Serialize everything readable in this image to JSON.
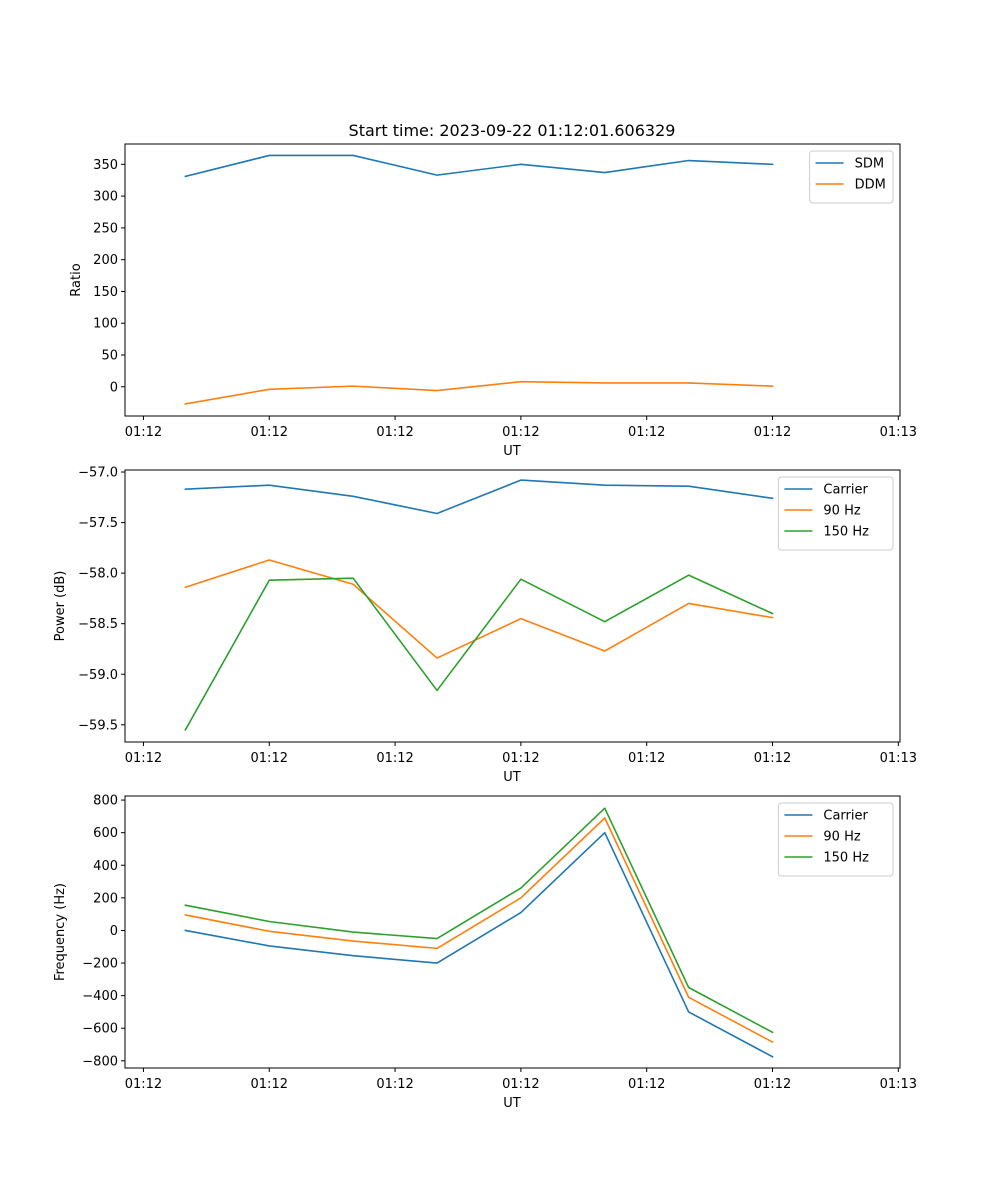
{
  "title": "Start time: 2023-09-22 01:12:01.606329",
  "colors": {
    "blue": "#1f77b4",
    "orange": "#ff7f0e",
    "green": "#2ca02c"
  },
  "chart_data": [
    {
      "type": "line",
      "title": "Start time: 2023-09-22 01:12:01.606329",
      "xlabel": "UT",
      "ylabel": "Ratio",
      "x": [
        1,
        2,
        3,
        4,
        5,
        6,
        7,
        8
      ],
      "xlim": [
        0.28,
        9.52
      ],
      "xticks": [
        {
          "v": 0.5,
          "label": "01:12"
        },
        {
          "v": 2,
          "label": "01:12"
        },
        {
          "v": 3.5,
          "label": "01:12"
        },
        {
          "v": 5,
          "label": "01:12"
        },
        {
          "v": 6.5,
          "label": "01:12"
        },
        {
          "v": 8,
          "label": "01:12"
        },
        {
          "v": 9.5,
          "label": "01:13"
        }
      ],
      "ylim": [
        -46,
        382
      ],
      "yticks": [
        {
          "v": 0,
          "label": "0"
        },
        {
          "v": 50,
          "label": "50"
        },
        {
          "v": 100,
          "label": "100"
        },
        {
          "v": 150,
          "label": "150"
        },
        {
          "v": 200,
          "label": "200"
        },
        {
          "v": 250,
          "label": "250"
        },
        {
          "v": 300,
          "label": "300"
        },
        {
          "v": 350,
          "label": "350"
        }
      ],
      "legend_position": "top-right",
      "series": [
        {
          "name": "SDM",
          "color": "#1f77b4",
          "values": [
            331,
            364,
            364,
            333,
            350,
            337,
            356,
            350
          ]
        },
        {
          "name": "DDM",
          "color": "#ff7f0e",
          "values": [
            -27,
            -4,
            1,
            -6,
            8,
            6,
            6,
            1
          ]
        }
      ]
    },
    {
      "type": "line",
      "title": "",
      "xlabel": "UT",
      "ylabel": "Power (dB)",
      "x": [
        1,
        2,
        3,
        4,
        5,
        6,
        7,
        8
      ],
      "xlim": [
        0.28,
        9.52
      ],
      "xticks": [
        {
          "v": 0.5,
          "label": "01:12"
        },
        {
          "v": 2,
          "label": "01:12"
        },
        {
          "v": 3.5,
          "label": "01:12"
        },
        {
          "v": 5,
          "label": "01:12"
        },
        {
          "v": 6.5,
          "label": "01:12"
        },
        {
          "v": 8,
          "label": "01:12"
        },
        {
          "v": 9.5,
          "label": "01:13"
        }
      ],
      "ylim": [
        -59.67,
        -56.98
      ],
      "yticks": [
        {
          "v": -59.5,
          "label": "−59.5"
        },
        {
          "v": -59.0,
          "label": "−59.0"
        },
        {
          "v": -58.5,
          "label": "−58.5"
        },
        {
          "v": -58.0,
          "label": "−58.0"
        },
        {
          "v": -57.5,
          "label": "−57.5"
        },
        {
          "v": -57.0,
          "label": "−57.0"
        }
      ],
      "legend_position": "top-right",
      "series": [
        {
          "name": "Carrier",
          "color": "#1f77b4",
          "values": [
            -57.17,
            -57.13,
            -57.24,
            -57.41,
            -57.08,
            -57.13,
            -57.14,
            -57.26
          ]
        },
        {
          "name": "90 Hz",
          "color": "#ff7f0e",
          "values": [
            -58.14,
            -57.87,
            -58.11,
            -58.84,
            -58.45,
            -58.77,
            -58.3,
            -58.44
          ]
        },
        {
          "name": "150 Hz",
          "color": "#2ca02c",
          "values": [
            -59.55,
            -58.07,
            -58.05,
            -59.16,
            -58.06,
            -58.48,
            -58.02,
            -58.4
          ]
        }
      ]
    },
    {
      "type": "line",
      "title": "",
      "xlabel": "UT",
      "ylabel": "Frequency (Hz)",
      "x": [
        1,
        2,
        3,
        4,
        5,
        6,
        7,
        8
      ],
      "xlim": [
        0.28,
        9.52
      ],
      "xticks": [
        {
          "v": 0.5,
          "label": "01:12"
        },
        {
          "v": 2,
          "label": "01:12"
        },
        {
          "v": 3.5,
          "label": "01:12"
        },
        {
          "v": 5,
          "label": "01:12"
        },
        {
          "v": 6.5,
          "label": "01:12"
        },
        {
          "v": 8,
          "label": "01:12"
        },
        {
          "v": 9.5,
          "label": "01:13"
        }
      ],
      "ylim": [
        -844,
        825
      ],
      "yticks": [
        {
          "v": -800,
          "label": "−800"
        },
        {
          "v": -600,
          "label": "−600"
        },
        {
          "v": -400,
          "label": "−400"
        },
        {
          "v": -200,
          "label": "−200"
        },
        {
          "v": 0,
          "label": "0"
        },
        {
          "v": 200,
          "label": "200"
        },
        {
          "v": 400,
          "label": "400"
        },
        {
          "v": 600,
          "label": "600"
        },
        {
          "v": 800,
          "label": "800"
        }
      ],
      "legend_position": "top-right",
      "series": [
        {
          "name": "Carrier",
          "color": "#1f77b4",
          "values": [
            0,
            -95,
            -155,
            -200,
            110,
            600,
            -500,
            -775
          ]
        },
        {
          "name": "90 Hz",
          "color": "#ff7f0e",
          "values": [
            95,
            -5,
            -65,
            -110,
            200,
            690,
            -410,
            -685
          ]
        },
        {
          "name": "150 Hz",
          "color": "#2ca02c",
          "values": [
            155,
            55,
            -10,
            -50,
            260,
            750,
            -350,
            -625
          ]
        }
      ]
    }
  ]
}
